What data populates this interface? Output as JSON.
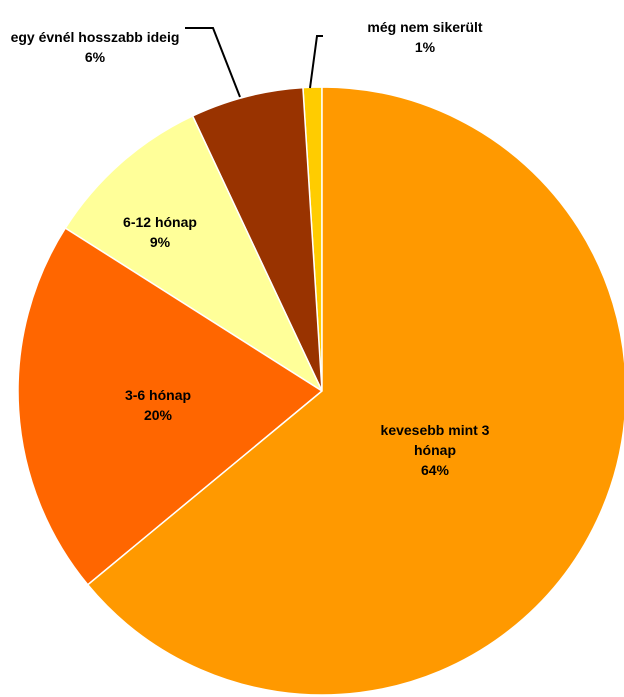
{
  "chart_data": {
    "type": "pie",
    "categories": [
      "kevesebb mint 3 hónap",
      "3-6 hónap",
      "6-12 hónap",
      "egy évnél hosszabb ideig",
      "még nem sikerült"
    ],
    "values": [
      64,
      20,
      9,
      6,
      1
    ],
    "value_labels": [
      "64%",
      "20%",
      "9%",
      "6%",
      "1%"
    ],
    "colors": [
      "#FF9900",
      "#FF6600",
      "#FFFF99",
      "#993300",
      "#FFCC00"
    ]
  }
}
